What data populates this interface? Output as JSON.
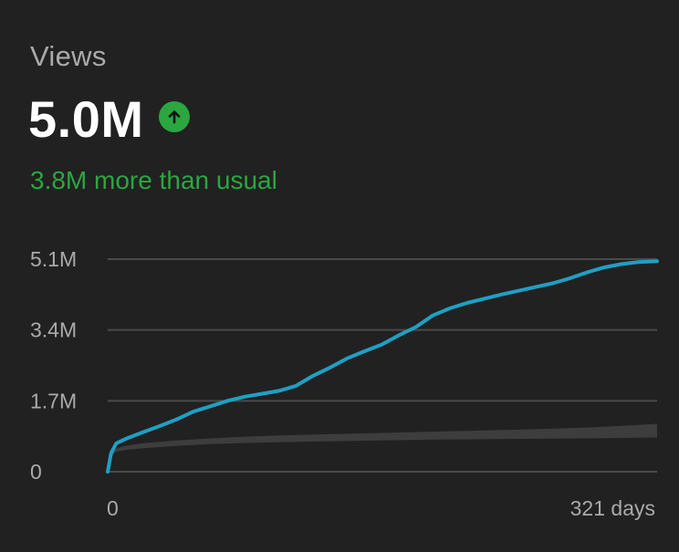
{
  "metric": {
    "label": "Views",
    "value": "5.0M",
    "trend_icon": "arrow-up-icon",
    "comparison": "3.8M more than usual"
  },
  "colors": {
    "background": "#212121",
    "accent_line": "#1ea0c4",
    "typical_band": "#3d3d3d",
    "positive": "#2ba640",
    "grid": "#4a4a4a",
    "label": "#aaaaaa"
  },
  "chart_data": {
    "type": "line",
    "title": "",
    "xlabel": "",
    "ylabel": "",
    "xlim": [
      0,
      321
    ],
    "ylim": [
      0,
      5100000
    ],
    "yticks": [
      {
        "value": 5100000,
        "label": "5.1M"
      },
      {
        "value": 3400000,
        "label": "3.4M"
      },
      {
        "value": 1700000,
        "label": "1.7M"
      },
      {
        "value": 0,
        "label": "0"
      }
    ],
    "xticks": [
      {
        "value": 0,
        "label": "0"
      },
      {
        "value": 321,
        "label": "321 days"
      }
    ],
    "grid": true,
    "legend": "none",
    "series": [
      {
        "kind": "line",
        "x": [
          0,
          2,
          5,
          10,
          20,
          30,
          40,
          50,
          60,
          70,
          80,
          90,
          100,
          110,
          120,
          130,
          140,
          150,
          160,
          170,
          180,
          190,
          200,
          210,
          220,
          230,
          240,
          250,
          260,
          270,
          280,
          290,
          300,
          310,
          321
        ],
        "y": [
          0,
          450000,
          680000,
          780000,
          940000,
          1090000,
          1250000,
          1440000,
          1570000,
          1700000,
          1800000,
          1870000,
          1940000,
          2060000,
          2300000,
          2500000,
          2720000,
          2890000,
          3050000,
          3270000,
          3470000,
          3750000,
          3920000,
          4050000,
          4150000,
          4250000,
          4340000,
          4430000,
          4520000,
          4640000,
          4780000,
          4900000,
          4980000,
          5030000,
          5050000
        ]
      },
      {
        "kind": "band",
        "x": [
          0,
          2,
          5,
          10,
          20,
          40,
          60,
          80,
          100,
          130,
          160,
          190,
          220,
          250,
          280,
          300,
          321
        ],
        "lower": [
          0,
          360000,
          480000,
          520000,
          560000,
          620000,
          660000,
          690000,
          710000,
          730000,
          750000,
          770000,
          780000,
          790000,
          800000,
          810000,
          820000
        ],
        "upper": [
          0,
          420000,
          560000,
          620000,
          680000,
          750000,
          800000,
          840000,
          870000,
          900000,
          930000,
          960000,
          990000,
          1020000,
          1060000,
          1100000,
          1150000
        ]
      }
    ]
  }
}
